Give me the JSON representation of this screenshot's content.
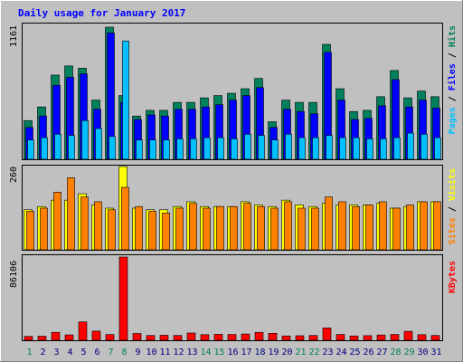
{
  "title": "Daily usage for January 2017",
  "colors": {
    "frame": "#c0c0c0",
    "plot_bg": "#c0c0c0",
    "title": "#0000ff",
    "hits": "#00805c",
    "files": "#0000ff",
    "pages": "#00c0ff",
    "visits": "#ffff00",
    "sites": "#ff8000",
    "kbytes": "#ff0000",
    "day_weekend": "#00805c",
    "day_weekday": "#000080"
  },
  "chart_data": [
    {
      "type": "bar",
      "title": "Daily usage for January 2017",
      "ymax_label": "1161",
      "ylim": [
        0,
        1161
      ],
      "legend": [
        "Pages",
        "Files",
        "Hits"
      ],
      "categories": [
        "1",
        "2",
        "3",
        "4",
        "5",
        "6",
        "7",
        "8",
        "9",
        "10",
        "11",
        "12",
        "13",
        "14",
        "15",
        "16",
        "17",
        "18",
        "19",
        "20",
        "21",
        "22",
        "23",
        "24",
        "25",
        "26",
        "27",
        "28",
        "29",
        "30",
        "31"
      ],
      "series": [
        {
          "name": "Hits",
          "values": [
            340,
            460,
            740,
            820,
            800,
            520,
            1161,
            560,
            380,
            430,
            430,
            500,
            500,
            540,
            560,
            580,
            620,
            710,
            330,
            520,
            500,
            500,
            1010,
            620,
            420,
            430,
            550,
            780,
            540,
            600,
            550
          ]
        },
        {
          "name": "Files",
          "values": [
            280,
            380,
            650,
            720,
            750,
            440,
            1110,
            500,
            350,
            390,
            380,
            440,
            440,
            460,
            480,
            520,
            560,
            630,
            280,
            440,
            420,
            400,
            940,
            520,
            350,
            360,
            470,
            700,
            460,
            520,
            450
          ]
        },
        {
          "name": "Pages",
          "values": [
            170,
            190,
            220,
            210,
            340,
            270,
            200,
            1040,
            170,
            170,
            170,
            180,
            180,
            190,
            190,
            180,
            220,
            210,
            170,
            220,
            190,
            190,
            210,
            190,
            190,
            180,
            180,
            190,
            230,
            220,
            190
          ]
        }
      ]
    },
    {
      "type": "bar",
      "ymax_label": "260",
      "ylim": [
        0,
        260
      ],
      "legend": [
        "Sites",
        "Visits"
      ],
      "categories": [
        "1",
        "2",
        "3",
        "4",
        "5",
        "6",
        "7",
        "8",
        "9",
        "10",
        "11",
        "12",
        "13",
        "14",
        "15",
        "16",
        "17",
        "18",
        "19",
        "20",
        "21",
        "22",
        "23",
        "24",
        "25",
        "26",
        "27",
        "28",
        "29",
        "30",
        "31"
      ],
      "series": [
        {
          "name": "Visits",
          "values": [
            125,
            135,
            155,
            155,
            175,
            140,
            130,
            260,
            130,
            125,
            125,
            135,
            150,
            135,
            135,
            135,
            150,
            140,
            135,
            155,
            140,
            135,
            145,
            140,
            140,
            140,
            145,
            130,
            135,
            150,
            150
          ]
        },
        {
          "name": "Sites",
          "values": [
            120,
            130,
            180,
            225,
            165,
            150,
            125,
            195,
            135,
            120,
            115,
            130,
            145,
            130,
            135,
            135,
            145,
            135,
            130,
            150,
            130,
            130,
            165,
            150,
            135,
            140,
            150,
            130,
            140,
            150,
            150
          ]
        }
      ]
    },
    {
      "type": "bar",
      "ymax_label": "86106",
      "ylim": [
        0,
        86106
      ],
      "legend": [
        "KBytes"
      ],
      "categories": [
        "1",
        "2",
        "3",
        "4",
        "5",
        "6",
        "7",
        "8",
        "9",
        "10",
        "11",
        "12",
        "13",
        "14",
        "15",
        "16",
        "17",
        "18",
        "19",
        "20",
        "21",
        "22",
        "23",
        "24",
        "25",
        "26",
        "27",
        "28",
        "29",
        "30",
        "31"
      ],
      "series": [
        {
          "name": "KBytes",
          "values": [
            4000,
            4200,
            8200,
            5600,
            19000,
            9500,
            6000,
            86106,
            7000,
            5000,
            5200,
            5000,
            7500,
            5800,
            6200,
            6000,
            6500,
            8200,
            7200,
            4500,
            4700,
            5000,
            12800,
            6000,
            4500,
            4800,
            5500,
            6000,
            9300,
            5800,
            5000
          ]
        }
      ]
    }
  ],
  "days": {
    "labels": [
      "1",
      "2",
      "3",
      "4",
      "5",
      "6",
      "7",
      "8",
      "9",
      "10",
      "11",
      "12",
      "13",
      "14",
      "15",
      "16",
      "17",
      "18",
      "19",
      "20",
      "21",
      "22",
      "23",
      "24",
      "25",
      "26",
      "27",
      "28",
      "29",
      "30",
      "31"
    ],
    "weekend": [
      1,
      7,
      8,
      14,
      15,
      21,
      22,
      28,
      29
    ]
  },
  "legend_labels": {
    "top": [
      {
        "text": "Pages",
        "color_key": "pages"
      },
      {
        "text": "Files",
        "color_key": "files"
      },
      {
        "text": "Hits",
        "color_key": "hits"
      }
    ],
    "middle": [
      {
        "text": "Sites",
        "color_key": "sites"
      },
      {
        "text": "Visits",
        "color_key": "visits"
      }
    ],
    "bottom": [
      {
        "text": "KBytes",
        "color_key": "kbytes"
      }
    ]
  }
}
